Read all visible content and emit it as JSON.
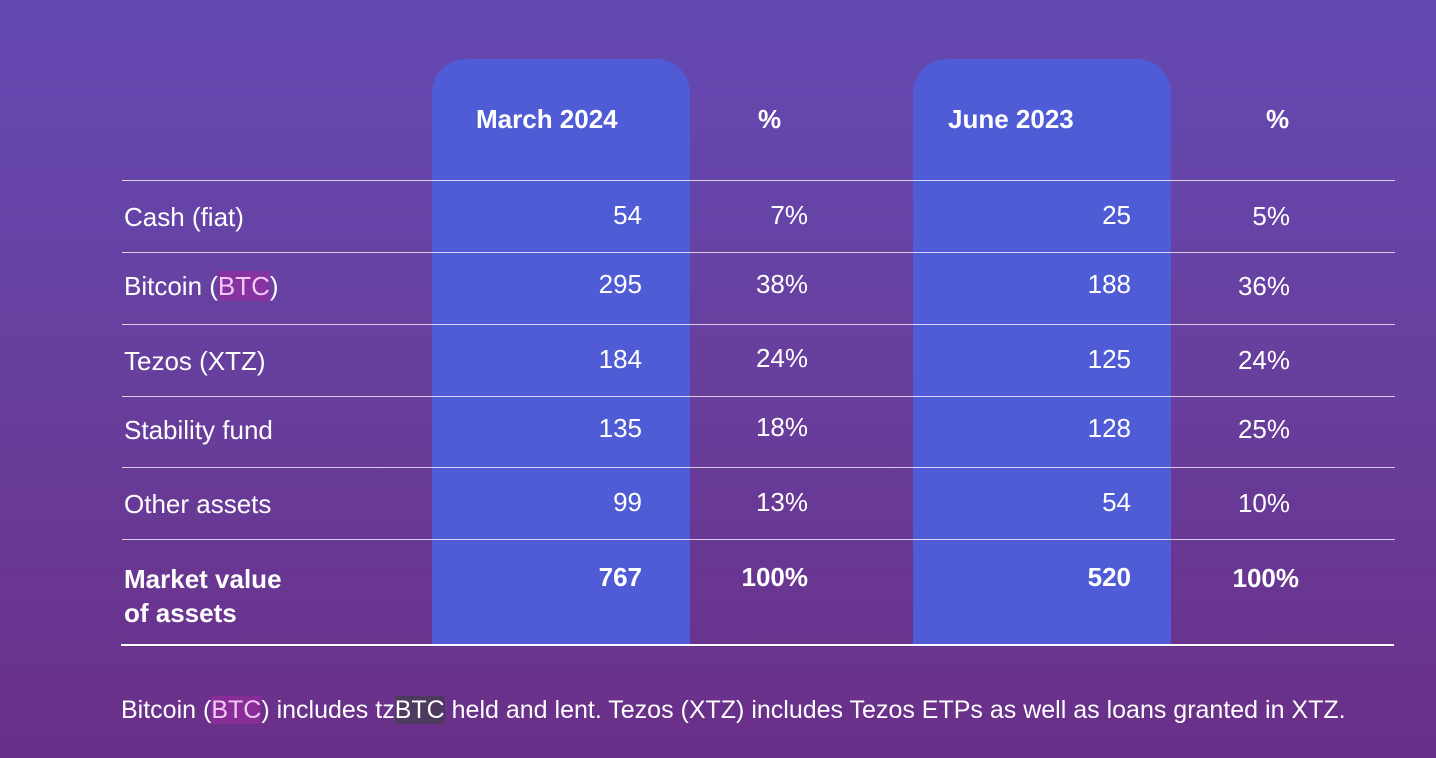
{
  "columns": {
    "col1_header": "March 2024",
    "col1_pct_header": "%",
    "col2_header": "June 2023",
    "col2_pct_header": "%"
  },
  "rows": [
    {
      "label": "Cash (fiat)",
      "v1": "54",
      "p1": "7%",
      "v2": "25",
      "p2": "5%"
    },
    {
      "label_pre": "Bitcoin (",
      "label_hl": "BTC",
      "label_post": ")",
      "v1": "295",
      "p1": "38%",
      "v2": "188",
      "p2": "36%"
    },
    {
      "label": "Tezos (XTZ)",
      "v1": "184",
      "p1": "24%",
      "v2": "125",
      "p2": "24%"
    },
    {
      "label": "Stability fund",
      "v1": "135",
      "p1": "18%",
      "v2": "128",
      "p2": "25%"
    },
    {
      "label": "Other assets",
      "v1": "99",
      "p1": "13%",
      "v2": "54",
      "p2": "10%"
    }
  ],
  "total": {
    "label_line1": "Market value",
    "label_line2": "of assets",
    "v1": "767",
    "p1": "100%",
    "v2": "520",
    "p2": "100%"
  },
  "footnote": {
    "part1": "Bitcoin (",
    "hl1": "BTC",
    "part2": ") includes tz",
    "hl2": "BTC",
    "part3": " held and lent. Tezos (XTZ) includes Tezos ETPs as well as loans granted in XTZ."
  },
  "colors": {
    "background_top": "#6449b3",
    "background_bottom": "#6a2f88",
    "highlight_column": "#4f5cd6",
    "text": "#ffffff"
  }
}
